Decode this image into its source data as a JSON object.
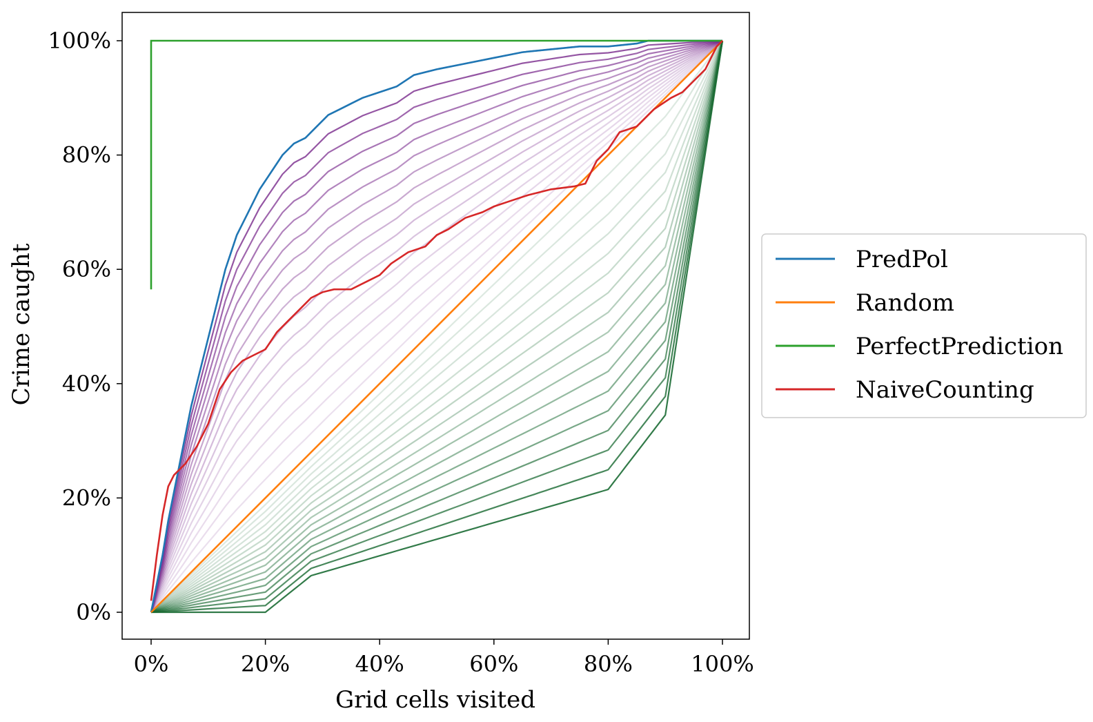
{
  "chart_data": {
    "type": "line",
    "title": "",
    "xlabel": "Grid cells visited",
    "ylabel": "Crime caught",
    "xlim": [
      -5,
      105
    ],
    "ylim": [
      -5,
      105
    ],
    "x_ticks": [
      0,
      20,
      40,
      60,
      80,
      100
    ],
    "y_ticks": [
      0,
      20,
      40,
      60,
      80,
      100
    ],
    "x_tick_labels": [
      "0%",
      "20%",
      "40%",
      "60%",
      "80%",
      "100%"
    ],
    "y_tick_labels": [
      "0%",
      "20%",
      "40%",
      "60%",
      "80%",
      "100%"
    ],
    "grid": false,
    "legend_position": "right, outside plot",
    "series": [
      {
        "name": "PredPol",
        "color": "#1f77b4",
        "points": [
          [
            0,
            0
          ],
          [
            1,
            5
          ],
          [
            2,
            10
          ],
          [
            3,
            16
          ],
          [
            5,
            26
          ],
          [
            7,
            36
          ],
          [
            9,
            44
          ],
          [
            11,
            52
          ],
          [
            13,
            60
          ],
          [
            15,
            66
          ],
          [
            17,
            70
          ],
          [
            19,
            74
          ],
          [
            21,
            77
          ],
          [
            23,
            80
          ],
          [
            25,
            82
          ],
          [
            27,
            83
          ],
          [
            29,
            85
          ],
          [
            31,
            87
          ],
          [
            33,
            88
          ],
          [
            35,
            89
          ],
          [
            37,
            90
          ],
          [
            40,
            91
          ],
          [
            43,
            92
          ],
          [
            46,
            94
          ],
          [
            50,
            95
          ],
          [
            55,
            96
          ],
          [
            60,
            97
          ],
          [
            65,
            98
          ],
          [
            70,
            98.5
          ],
          [
            75,
            99
          ],
          [
            80,
            99
          ],
          [
            85,
            99.5
          ],
          [
            87,
            100
          ],
          [
            100,
            100
          ]
        ]
      },
      {
        "name": "Random",
        "color": "#ff7f0e",
        "points": [
          [
            0,
            0
          ],
          [
            100,
            100
          ]
        ]
      },
      {
        "name": "PerfectPrediction",
        "color": "#2ca02c",
        "points": [
          [
            0,
            56.5
          ],
          [
            0,
            100
          ],
          [
            100,
            100
          ]
        ]
      },
      {
        "name": "NaiveCounting",
        "color": "#d62728",
        "points": [
          [
            0,
            2
          ],
          [
            1,
            10
          ],
          [
            2,
            17
          ],
          [
            3,
            22
          ],
          [
            4,
            24
          ],
          [
            6,
            26
          ],
          [
            8,
            29
          ],
          [
            10,
            33
          ],
          [
            12,
            39
          ],
          [
            14,
            42
          ],
          [
            16,
            44
          ],
          [
            18,
            45
          ],
          [
            20,
            46
          ],
          [
            22,
            49
          ],
          [
            24,
            51
          ],
          [
            26,
            53
          ],
          [
            28,
            55
          ],
          [
            30,
            56
          ],
          [
            32,
            56.5
          ],
          [
            35,
            56.5
          ],
          [
            38,
            58
          ],
          [
            40,
            59
          ],
          [
            42,
            61
          ],
          [
            45,
            63
          ],
          [
            48,
            64
          ],
          [
            50,
            66
          ],
          [
            52,
            67
          ],
          [
            55,
            69
          ],
          [
            58,
            70
          ],
          [
            60,
            71
          ],
          [
            63,
            72
          ],
          [
            66,
            73
          ],
          [
            70,
            74
          ],
          [
            74,
            74.5
          ],
          [
            76,
            75
          ],
          [
            78,
            79
          ],
          [
            80,
            81
          ],
          [
            82,
            84
          ],
          [
            85,
            85
          ],
          [
            88,
            88
          ],
          [
            91,
            90
          ],
          [
            93,
            91
          ],
          [
            95,
            93
          ],
          [
            97,
            95
          ],
          [
            98,
            97
          ],
          [
            99,
            99
          ],
          [
            100,
            100
          ]
        ]
      }
    ],
    "unlabeled_curves": {
      "upper_purple_family": {
        "color": "#7b2d8e",
        "description_count": 20
      },
      "lower_green_family": {
        "color": "#1b6b34",
        "description_count": 20
      }
    }
  }
}
